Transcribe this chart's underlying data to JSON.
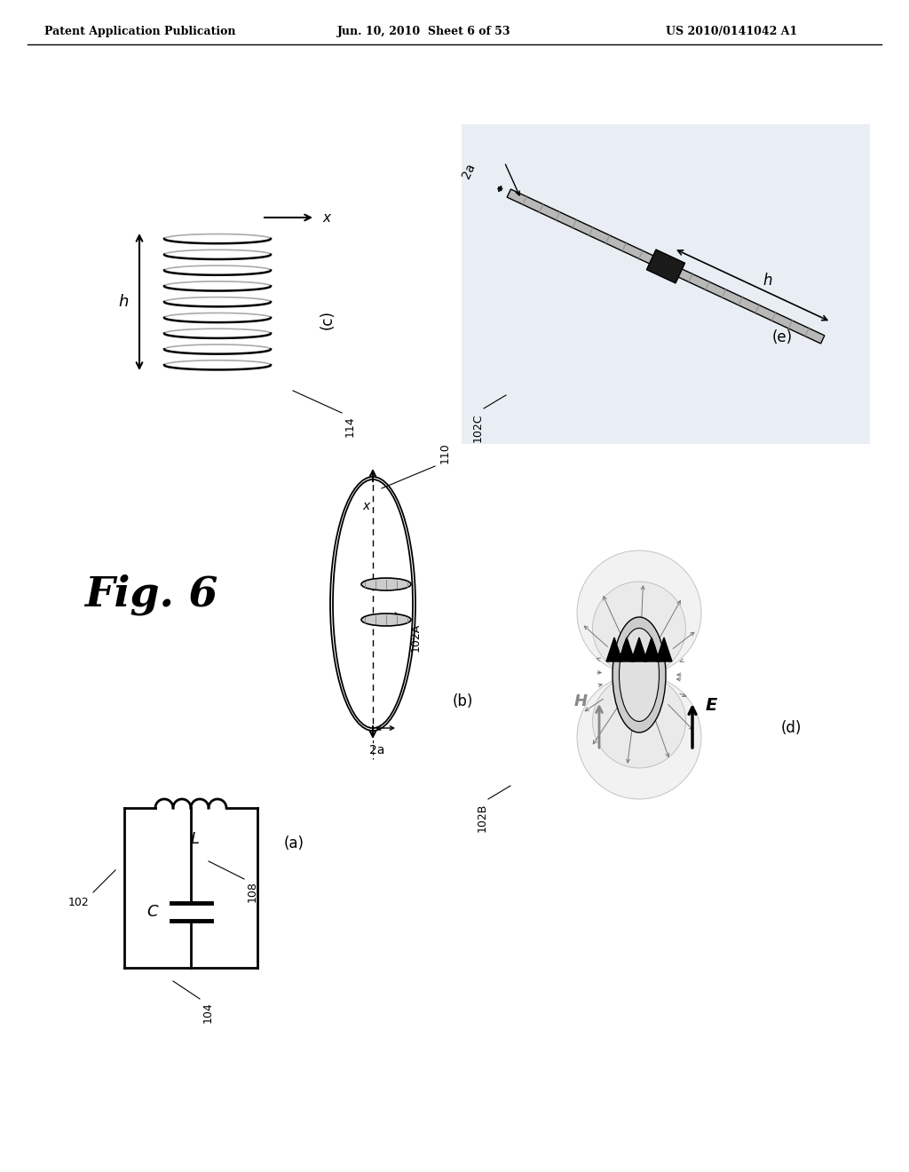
{
  "bg_color": "#ffffff",
  "header_text1": "Patent Application Publication",
  "header_text2": "Jun. 10, 2010  Sheet 6 of 53",
  "header_text3": "US 2010/0141042 A1",
  "fig_label": "Fig. 6",
  "text_color": "#000000",
  "gray_color": "#888888",
  "light_gray": "#dddddd",
  "dark_gray": "#666666"
}
